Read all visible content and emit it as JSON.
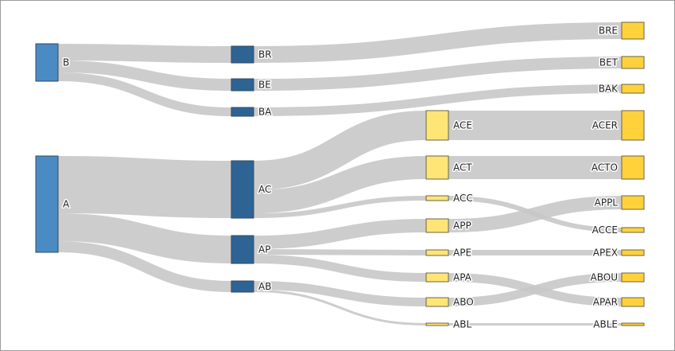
{
  "chart_data": {
    "type": "sankey",
    "colors": {
      "level1": "#4a8bc4",
      "level2": "#2e6494",
      "level3": "#ffe576",
      "level4": "#ffd23c",
      "link": "#c8c8c8"
    },
    "nodes": [
      {
        "id": "B",
        "level": 1
      },
      {
        "id": "A",
        "level": 1
      },
      {
        "id": "BR",
        "level": 2
      },
      {
        "id": "BE",
        "level": 2
      },
      {
        "id": "BA",
        "level": 2
      },
      {
        "id": "AC",
        "level": 2
      },
      {
        "id": "AP",
        "level": 2
      },
      {
        "id": "AB",
        "level": 2
      },
      {
        "id": "ACE",
        "level": 3
      },
      {
        "id": "ACT",
        "level": 3
      },
      {
        "id": "ACC",
        "level": 3
      },
      {
        "id": "APP",
        "level": 3
      },
      {
        "id": "APE",
        "level": 3
      },
      {
        "id": "APA",
        "level": 3
      },
      {
        "id": "ABO",
        "level": 3
      },
      {
        "id": "ABL",
        "level": 3
      },
      {
        "id": "BRE",
        "level": 4
      },
      {
        "id": "BET",
        "level": 4
      },
      {
        "id": "BAK",
        "level": 4
      },
      {
        "id": "ACER",
        "level": 4
      },
      {
        "id": "ACTO",
        "level": 4
      },
      {
        "id": "APPL",
        "level": 4
      },
      {
        "id": "ACCE",
        "level": 4
      },
      {
        "id": "APEX",
        "level": 4
      },
      {
        "id": "ABOU",
        "level": 4
      },
      {
        "id": "APAR",
        "level": 4
      },
      {
        "id": "ABLE",
        "level": 4
      }
    ],
    "links": [
      {
        "source": "B",
        "target": "BR",
        "value": 21
      },
      {
        "source": "B",
        "target": "BE",
        "value": 15
      },
      {
        "source": "B",
        "target": "BA",
        "value": 11
      },
      {
        "source": "A",
        "target": "AC",
        "value": 72
      },
      {
        "source": "A",
        "target": "AP",
        "value": 35
      },
      {
        "source": "A",
        "target": "AB",
        "value": 14
      },
      {
        "source": "BR",
        "target": "BRE",
        "value": 21
      },
      {
        "source": "BE",
        "target": "BET",
        "value": 15
      },
      {
        "source": "BA",
        "target": "BAK",
        "value": 11
      },
      {
        "source": "AC",
        "target": "ACE",
        "value": 37
      },
      {
        "source": "AC",
        "target": "ACT",
        "value": 29
      },
      {
        "source": "AC",
        "target": "ACC",
        "value": 6
      },
      {
        "source": "AP",
        "target": "APP",
        "value": 17
      },
      {
        "source": "AP",
        "target": "APE",
        "value": 7
      },
      {
        "source": "AP",
        "target": "APA",
        "value": 11
      },
      {
        "source": "AB",
        "target": "ABO",
        "value": 11
      },
      {
        "source": "AB",
        "target": "ABL",
        "value": 3
      },
      {
        "source": "ACE",
        "target": "ACER",
        "value": 37
      },
      {
        "source": "ACT",
        "target": "ACTO",
        "value": 29
      },
      {
        "source": "ACC",
        "target": "ACCE",
        "value": 6
      },
      {
        "source": "APP",
        "target": "APPL",
        "value": 17
      },
      {
        "source": "APE",
        "target": "APEX",
        "value": 7
      },
      {
        "source": "APA",
        "target": "APAR",
        "value": 11
      },
      {
        "source": "ABO",
        "target": "ABOU",
        "value": 11
      },
      {
        "source": "ABL",
        "target": "ABLE",
        "value": 3
      }
    ]
  }
}
